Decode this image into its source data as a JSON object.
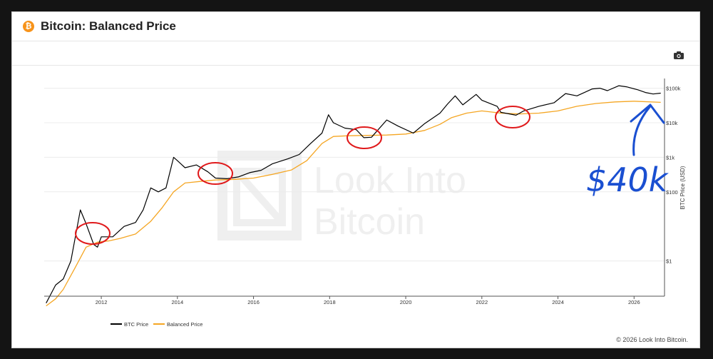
{
  "header": {
    "title": "Bitcoin: Balanced Price",
    "logo_glyph": "₿"
  },
  "toolbar": {
    "camera_icon": "camera-icon"
  },
  "watermark": {
    "line1": "Look Into",
    "line2": "Bitcoin"
  },
  "footer": {
    "copyright": "© 2026 Look Into Bitcoin."
  },
  "annotation": {
    "text": "$40k",
    "color": "#1a4fd1"
  },
  "chart_data": {
    "type": "line",
    "title": "Bitcoin: Balanced Price",
    "ylabel": "BTC Price (USD)",
    "xlabel": "",
    "y_scale": "log",
    "ylim": [
      0.1,
      200000
    ],
    "xlim": [
      2010.5,
      2026.8
    ],
    "x_ticks": [
      "2012",
      "2014",
      "2016",
      "2018",
      "2020",
      "2022",
      "2024",
      "2026"
    ],
    "y_ticks": [
      {
        "value": 1,
        "label": "$1"
      },
      {
        "value": 100,
        "label": "$100"
      },
      {
        "value": 1000,
        "label": "$1k"
      },
      {
        "value": 10000,
        "label": "$10k"
      },
      {
        "value": 100000,
        "label": "$100k"
      }
    ],
    "legend": {
      "placement": "bottom-left"
    },
    "series": [
      {
        "name": "BTC Price",
        "color": "#000000",
        "points": [
          [
            2010.55,
            0.06
          ],
          [
            2010.8,
            0.2
          ],
          [
            2011.0,
            0.3
          ],
          [
            2011.2,
            1
          ],
          [
            2011.4,
            15
          ],
          [
            2011.45,
            30
          ],
          [
            2011.6,
            12
          ],
          [
            2011.8,
            3
          ],
          [
            2011.9,
            2.5
          ],
          [
            2012.0,
            5
          ],
          [
            2012.3,
            5
          ],
          [
            2012.6,
            10
          ],
          [
            2012.9,
            13
          ],
          [
            2013.1,
            30
          ],
          [
            2013.3,
            130
          ],
          [
            2013.5,
            100
          ],
          [
            2013.7,
            130
          ],
          [
            2013.9,
            1000
          ],
          [
            2014.0,
            800
          ],
          [
            2014.2,
            500
          ],
          [
            2014.5,
            600
          ],
          [
            2014.8,
            380
          ],
          [
            2015.0,
            250
          ],
          [
            2015.3,
            240
          ],
          [
            2015.6,
            270
          ],
          [
            2015.9,
            360
          ],
          [
            2016.2,
            420
          ],
          [
            2016.5,
            650
          ],
          [
            2016.9,
            900
          ],
          [
            2017.2,
            1200
          ],
          [
            2017.5,
            2500
          ],
          [
            2017.8,
            5000
          ],
          [
            2017.97,
            17000
          ],
          [
            2018.1,
            10000
          ],
          [
            2018.4,
            7000
          ],
          [
            2018.7,
            6300
          ],
          [
            2018.9,
            3700
          ],
          [
            2019.1,
            3800
          ],
          [
            2019.5,
            12000
          ],
          [
            2019.8,
            8000
          ],
          [
            2020.2,
            5000
          ],
          [
            2020.5,
            9500
          ],
          [
            2020.9,
            19000
          ],
          [
            2021.1,
            35000
          ],
          [
            2021.3,
            60000
          ],
          [
            2021.5,
            33000
          ],
          [
            2021.85,
            66000
          ],
          [
            2022.0,
            45000
          ],
          [
            2022.4,
            30000
          ],
          [
            2022.5,
            20000
          ],
          [
            2022.9,
            16500
          ],
          [
            2023.1,
            22000
          ],
          [
            2023.5,
            30000
          ],
          [
            2023.9,
            38000
          ],
          [
            2024.2,
            70000
          ],
          [
            2024.5,
            60000
          ],
          [
            2024.9,
            95000
          ],
          [
            2025.1,
            100000
          ],
          [
            2025.3,
            85000
          ],
          [
            2025.6,
            118000
          ],
          [
            2025.8,
            110000
          ],
          [
            2026.1,
            90000
          ],
          [
            2026.3,
            75000
          ],
          [
            2026.5,
            68000
          ],
          [
            2026.7,
            72000
          ]
        ]
      },
      {
        "name": "Balanced Price",
        "color": "#f5a623",
        "points": [
          [
            2010.55,
            0.05
          ],
          [
            2010.8,
            0.08
          ],
          [
            2011.0,
            0.15
          ],
          [
            2011.3,
            0.6
          ],
          [
            2011.6,
            2.5
          ],
          [
            2011.9,
            3.5
          ],
          [
            2012.2,
            3.8
          ],
          [
            2012.5,
            4.5
          ],
          [
            2012.9,
            6
          ],
          [
            2013.3,
            14
          ],
          [
            2013.6,
            35
          ],
          [
            2013.9,
            100
          ],
          [
            2014.2,
            180
          ],
          [
            2014.6,
            200
          ],
          [
            2015.0,
            220
          ],
          [
            2015.5,
            230
          ],
          [
            2016.0,
            250
          ],
          [
            2016.5,
            320
          ],
          [
            2017.0,
            430
          ],
          [
            2017.4,
            800
          ],
          [
            2017.8,
            2500
          ],
          [
            2018.1,
            4000
          ],
          [
            2018.5,
            4200
          ],
          [
            2019.0,
            4300
          ],
          [
            2019.5,
            4400
          ],
          [
            2020.0,
            4700
          ],
          [
            2020.5,
            6000
          ],
          [
            2020.9,
            9000
          ],
          [
            2021.2,
            14000
          ],
          [
            2021.6,
            19000
          ],
          [
            2022.0,
            22000
          ],
          [
            2022.5,
            19000
          ],
          [
            2023.0,
            18000
          ],
          [
            2023.5,
            19000
          ],
          [
            2024.0,
            22000
          ],
          [
            2024.5,
            30000
          ],
          [
            2025.0,
            36000
          ],
          [
            2025.5,
            40000
          ],
          [
            2026.0,
            42000
          ],
          [
            2026.7,
            39000
          ]
        ]
      }
    ]
  }
}
